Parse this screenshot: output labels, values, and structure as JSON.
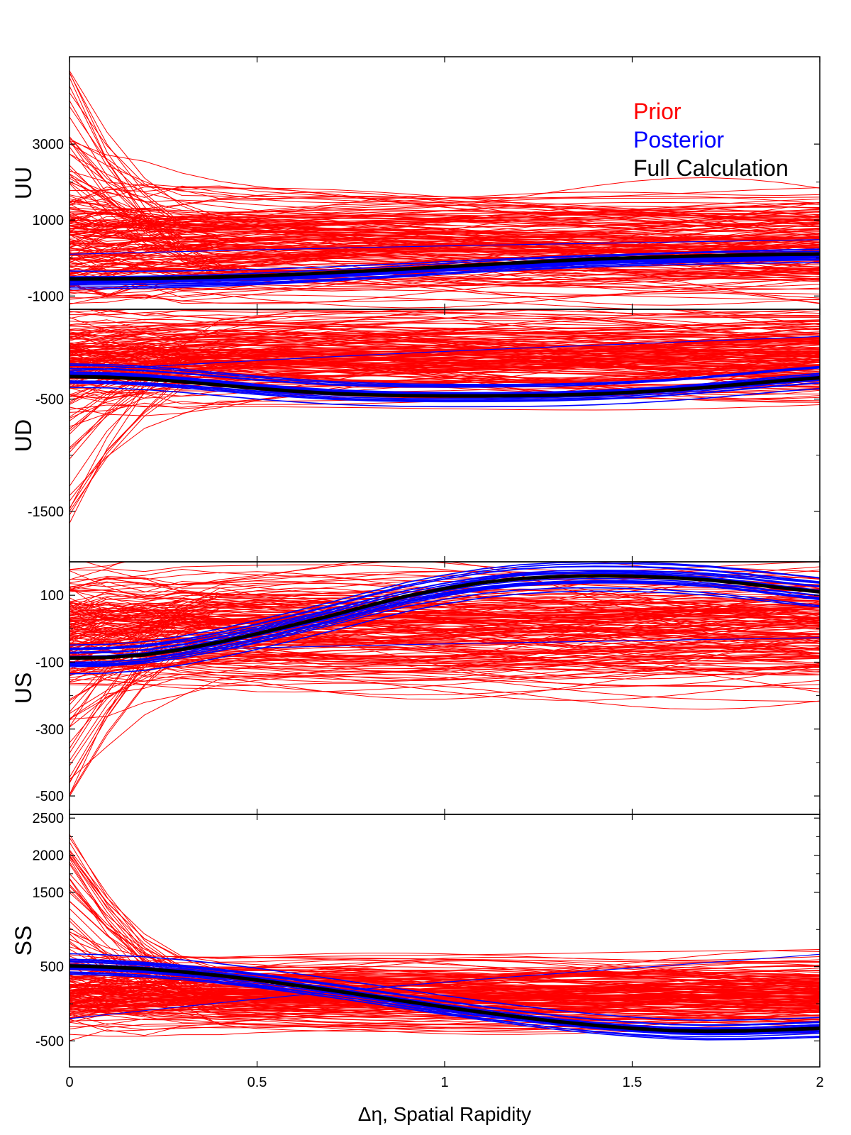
{
  "chart_data": {
    "type": "line",
    "xlabel": "Δη, Spatial Rapidity",
    "xlim": [
      0,
      2
    ],
    "xticks": [
      0,
      0.5,
      1,
      1.5,
      2
    ],
    "xtick_labels": [
      "0",
      "0.5",
      "1",
      "1.5",
      "2"
    ],
    "legend": {
      "placement": "top-right",
      "entries": [
        {
          "label": "Prior",
          "color": "#ff0000"
        },
        {
          "label": "Posterior",
          "color": "#0000ff"
        },
        {
          "label": "Full Calculation",
          "color": "#000000"
        }
      ]
    },
    "series_colors": {
      "prior": "#ff0000",
      "posterior": "#0000ff",
      "full": "#000000"
    },
    "x": [
      0,
      0.1,
      0.2,
      0.3,
      0.4,
      0.5,
      0.6,
      0.7,
      0.8,
      0.9,
      1.0,
      1.1,
      1.2,
      1.3,
      1.4,
      1.5,
      1.6,
      1.7,
      1.8,
      1.9,
      2.0
    ],
    "panels": [
      {
        "ylabel": "UU",
        "ylim": [
          -1350,
          5300
        ],
        "yticks": [
          -1000,
          1000,
          3000
        ],
        "ytick_labels": [
          "-1000",
          "1000",
          "3000"
        ],
        "full_calculation": [
          -550,
          -548,
          -540,
          -525,
          -500,
          -470,
          -430,
          -385,
          -335,
          -285,
          -230,
          -175,
          -125,
          -75,
          -30,
          5,
          35,
          60,
          80,
          95,
          105
        ],
        "posterior_band": 120,
        "posterior_outlier": {
          "start": 100,
          "end": 500
        },
        "prior_center": 300,
        "prior_spread": 1400,
        "prior_spike_max": 5000
      },
      {
        "ylabel": "UD",
        "ylim": [
          -1950,
          300
        ],
        "yticks": [
          -1500,
          -500
        ],
        "ytick_labels": [
          "-1500",
          "-500"
        ],
        "full_calculation": [
          -300,
          -305,
          -320,
          -345,
          -375,
          -405,
          -430,
          -450,
          -462,
          -470,
          -472,
          -472,
          -470,
          -465,
          -455,
          -440,
          -420,
          -395,
          -365,
          -335,
          -310
        ],
        "posterior_band": 45,
        "posterior_outlier": {
          "start": -250,
          "end": 70
        },
        "prior_center": -150,
        "prior_spread": 380,
        "prior_spike_min": -1700
      },
      {
        "ylabel": "US",
        "ylim": [
          -555,
          200
        ],
        "yticks": [
          -500,
          -300,
          -100,
          100
        ],
        "ytick_labels": [
          "-500",
          "-300",
          "-100",
          "100"
        ],
        "full_calculation": [
          -88,
          -86,
          -78,
          -62,
          -40,
          -15,
          12,
          40,
          70,
          98,
          120,
          138,
          150,
          156,
          158,
          157,
          153,
          146,
          135,
          122,
          110
        ],
        "posterior_band": 18,
        "posterior_outlier": {
          "start": -70,
          "end": -25
        },
        "prior_center": 0,
        "prior_spread": 170,
        "prior_spike_min": -520
      },
      {
        "ylabel": "SS",
        "ylim": [
          -850,
          2550
        ],
        "yticks": [
          -500,
          500,
          1500,
          2000,
          2500
        ],
        "ytick_labels": [
          "-500",
          "500",
          "1500",
          "2000",
          "2500"
        ],
        "full_calculation": [
          510,
          495,
          470,
          430,
          380,
          320,
          250,
          180,
          105,
          30,
          -45,
          -115,
          -180,
          -240,
          -290,
          -330,
          -360,
          -370,
          -365,
          -350,
          -330
        ],
        "posterior_band": 55,
        "posterior_outlier": {
          "start": -200,
          "end": 700
        },
        "prior_center": 100,
        "prior_spread": 450,
        "prior_spike_max": 2300
      }
    ]
  }
}
